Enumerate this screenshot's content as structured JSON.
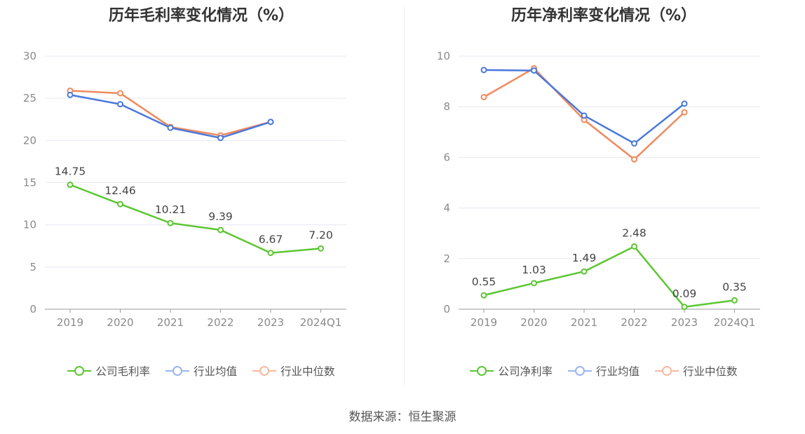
{
  "colors": {
    "company": "#5cc632",
    "industry_avg": "#4a78dc",
    "industry_median": "#f08a5d",
    "legend_avg": "#9bb5ee",
    "legend_median": "#f7b9a0",
    "grid": "#e6e8f2",
    "axis": "#999999"
  },
  "source": "数据来源：恒生聚源",
  "chart_data": [
    {
      "type": "line",
      "title": "历年毛利率变化情况（%）",
      "categories": [
        "2019",
        "2020",
        "2021",
        "2022",
        "2023",
        "2024Q1"
      ],
      "ylim": [
        0,
        30
      ],
      "yticks": [
        "0",
        "5",
        "10",
        "15",
        "20",
        "25",
        "30"
      ],
      "series": [
        {
          "name": "公司毛利率",
          "values": [
            14.75,
            12.46,
            10.21,
            9.39,
            6.67,
            7.2
          ],
          "labels": [
            "14.75",
            "12.46",
            "10.21",
            "9.39",
            "6.67",
            "7.20"
          ]
        },
        {
          "name": "行业均值",
          "values": [
            25.4,
            24.3,
            21.5,
            20.3,
            22.2,
            null
          ]
        },
        {
          "name": "行业中位数",
          "values": [
            25.9,
            25.6,
            21.6,
            20.6,
            22.2,
            null
          ]
        }
      ]
    },
    {
      "type": "line",
      "title": "历年净利率变化情况（%）",
      "categories": [
        "2019",
        "2020",
        "2021",
        "2022",
        "2023",
        "2024Q1"
      ],
      "ylim": [
        0,
        10
      ],
      "yticks": [
        "0",
        "2",
        "4",
        "6",
        "8",
        "10"
      ],
      "series": [
        {
          "name": "公司净利率",
          "values": [
            0.55,
            1.03,
            1.49,
            2.48,
            0.09,
            0.35
          ],
          "labels": [
            "0.55",
            "1.03",
            "1.49",
            "2.48",
            "0.09",
            "0.35"
          ]
        },
        {
          "name": "行业均值",
          "values": [
            9.45,
            9.43,
            7.65,
            6.55,
            8.12,
            null
          ]
        },
        {
          "name": "行业中位数",
          "values": [
            8.38,
            9.52,
            7.48,
            5.92,
            7.78,
            null
          ]
        }
      ]
    }
  ]
}
